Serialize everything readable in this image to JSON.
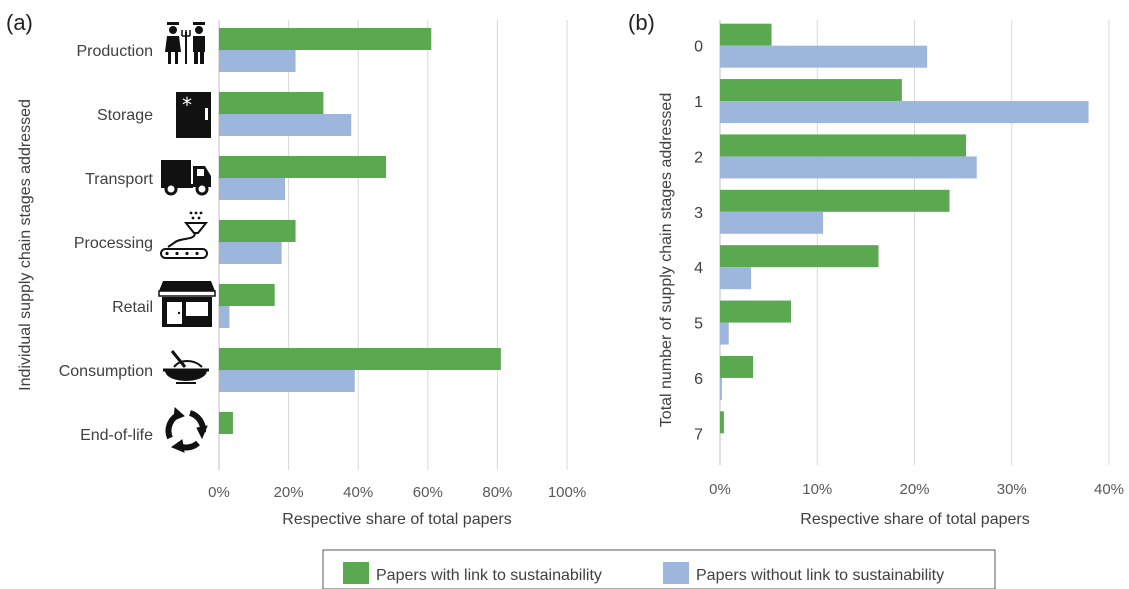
{
  "panels": [
    {
      "panel_label": "(a)",
      "chart_data": {
        "type": "bar",
        "orientation": "horizontal",
        "categories": [
          "Production",
          "Storage",
          "Transport",
          "Processing",
          "Retail",
          "Consumption",
          "End-of-life"
        ],
        "category_icons": [
          "farmers-icon",
          "freezer-icon",
          "truck-icon",
          "processing-icon",
          "shop-icon",
          "bowl-icon",
          "recycle-icon"
        ],
        "series": [
          {
            "name": "Papers with link to sustainability",
            "values": [
              61,
              30,
              48,
              22,
              16,
              81,
              4
            ]
          },
          {
            "name": "Papers without link to sustainability",
            "values": [
              22,
              38,
              19,
              18,
              3,
              39,
              0
            ]
          }
        ],
        "xlabel": "Respective share of total papers",
        "ylabel": "Individual supply chain stages addressed",
        "xlim": [
          0,
          100
        ],
        "xticks": [
          "0%",
          "20%",
          "40%",
          "60%",
          "80%",
          "100%"
        ],
        "grid": "vertical"
      }
    },
    {
      "panel_label": "(b)",
      "chart_data": {
        "type": "bar",
        "orientation": "horizontal",
        "categories": [
          "0",
          "1",
          "2",
          "3",
          "4",
          "5",
          "6",
          "7"
        ],
        "series": [
          {
            "name": "Papers with link to sustainability",
            "values": [
              5.3,
              18.7,
              25.3,
              23.6,
              16.3,
              7.3,
              3.4,
              0.4
            ]
          },
          {
            "name": "Papers without link to sustainability",
            "values": [
              21.3,
              37.9,
              26.4,
              10.6,
              3.2,
              0.9,
              0.2,
              0
            ]
          }
        ],
        "xlabel": "Respective share of total papers",
        "ylabel": "Total number of supply chain stages addressed",
        "xlim": [
          0,
          40
        ],
        "xticks": [
          "0%",
          "10%",
          "20%",
          "30%",
          "40%"
        ],
        "grid": "vertical"
      }
    }
  ],
  "legend": {
    "placement": "bottom-center",
    "items": [
      {
        "label": "Papers with link to sustainability",
        "color": "#5aa84f"
      },
      {
        "label": "Papers without link to sustainability",
        "color": "#9db6dc"
      }
    ]
  },
  "colors": {
    "with_link": "#5aa84f",
    "without_link": "#9db6dc",
    "grid": "#d9d9d9"
  }
}
